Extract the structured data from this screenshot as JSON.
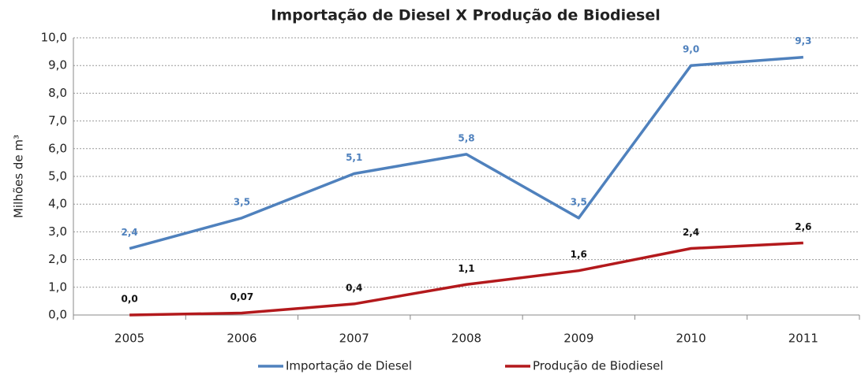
{
  "chart_data": {
    "type": "line",
    "title": "Importação de Diesel X Produção de Biodiesel",
    "y_label": "Milhões de m³",
    "categories": [
      "2005",
      "2006",
      "2007",
      "2008",
      "2009",
      "2010",
      "2011"
    ],
    "series": [
      {
        "name": "Importação de Diesel",
        "color": "#4f81bd",
        "values": [
          2.4,
          3.5,
          5.1,
          5.8,
          3.5,
          9.0,
          9.3
        ],
        "value_labels": [
          "2,4",
          "3,5",
          "5,1",
          "5,8",
          "3,5",
          "9,0",
          "9,3"
        ]
      },
      {
        "name": "Produção de Biodiesel",
        "color": "#b3191c",
        "values": [
          0.0,
          0.07,
          0.4,
          1.1,
          1.6,
          2.4,
          2.6
        ],
        "value_labels": [
          "0,0",
          "0,07",
          "0,4",
          "1,1",
          "1,6",
          "2,4",
          "2,6"
        ]
      }
    ],
    "ylim": [
      0,
      10
    ],
    "yticks": [
      {
        "value": 0,
        "label": "0,0"
      },
      {
        "value": 1,
        "label": "1,0"
      },
      {
        "value": 2,
        "label": "2,0"
      },
      {
        "value": 3,
        "label": "3,0"
      },
      {
        "value": 4,
        "label": "4,0"
      },
      {
        "value": 5,
        "label": "5,0"
      },
      {
        "value": 6,
        "label": "6,0"
      },
      {
        "value": 7,
        "label": "7,0"
      },
      {
        "value": 8,
        "label": "8,0"
      },
      {
        "value": 9,
        "label": "9,0"
      },
      {
        "value": 10,
        "label": "10,0"
      }
    ],
    "grid": true,
    "legend": "bottom"
  }
}
